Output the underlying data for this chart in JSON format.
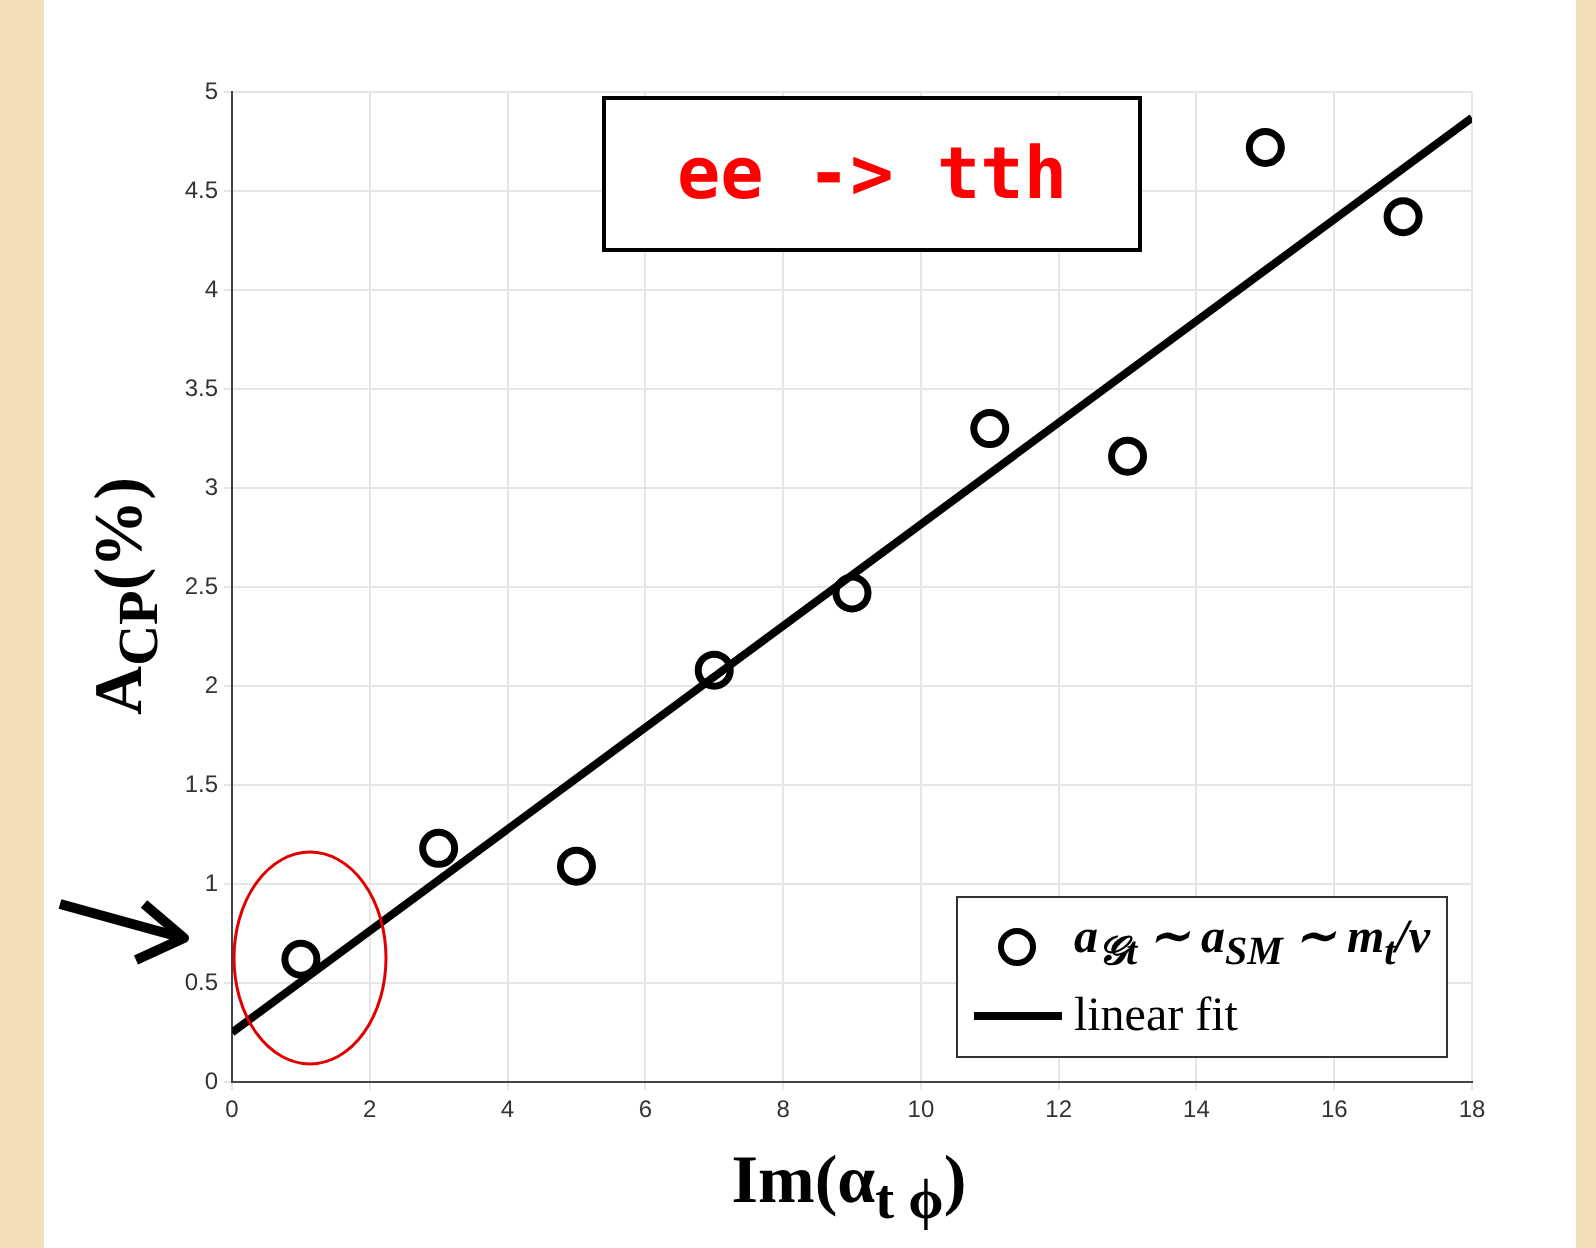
{
  "chart_data": {
    "type": "scatter",
    "xlabel": "Im(α$_{t ϕ}$)",
    "ylabel": "A$_{CP}$(%)",
    "annotations": [
      "ee -> tth"
    ],
    "xlim": [
      0,
      18
    ],
    "xticks": [
      0,
      2,
      4,
      6,
      8,
      10,
      12,
      14,
      16,
      18
    ],
    "ylim": [
      0,
      5
    ],
    "yticks": [
      0,
      0.5,
      1,
      1.5,
      2,
      2.5,
      3,
      3.5,
      4,
      4.5,
      5
    ],
    "grid": true,
    "legend": "bottom right",
    "marker": "circle",
    "series": [
      {
        "name": "a$_{𝒢t}$ ∼ a$_{SM}$ ∼ m$_{t}$/v",
        "color": "#000000",
        "x": [
          1,
          3,
          5,
          7,
          9,
          11,
          13,
          15,
          17
        ],
        "values": [
          0.62,
          1.18,
          1.09,
          2.08,
          2.47,
          3.3,
          3.16,
          4.72,
          4.37
        ]
      },
      {
        "name": "linear fit",
        "type": "line",
        "marker": "none",
        "color": "#000000",
        "x": [
          0,
          18
        ],
        "values": [
          0.25,
          4.87
        ]
      }
    ]
  }
}
